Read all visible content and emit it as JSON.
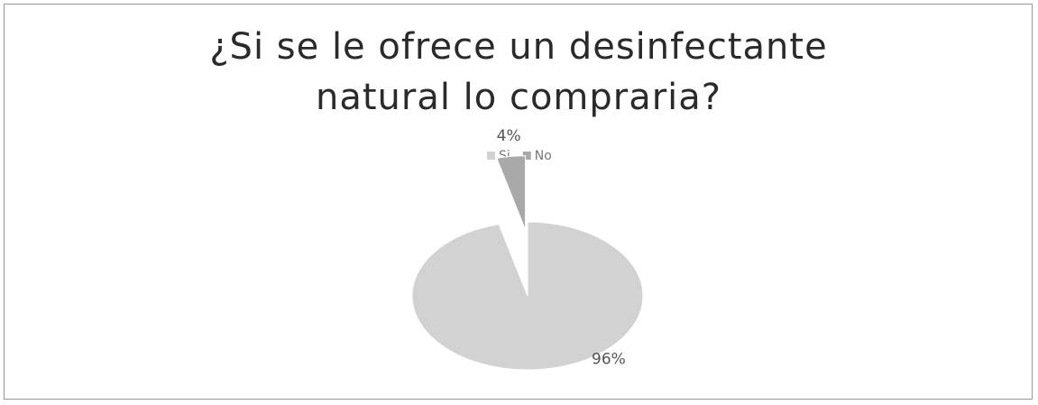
{
  "chart_data": {
    "type": "pie",
    "title": "¿Si se le ofrece un desinfectante natural lo compraria?",
    "categories": [
      "Si",
      "No"
    ],
    "values": [
      96,
      4
    ],
    "value_labels": [
      "96%",
      "4%"
    ],
    "colors": [
      "#d2d2d2",
      "#a9a9a9"
    ],
    "legend": "top"
  }
}
